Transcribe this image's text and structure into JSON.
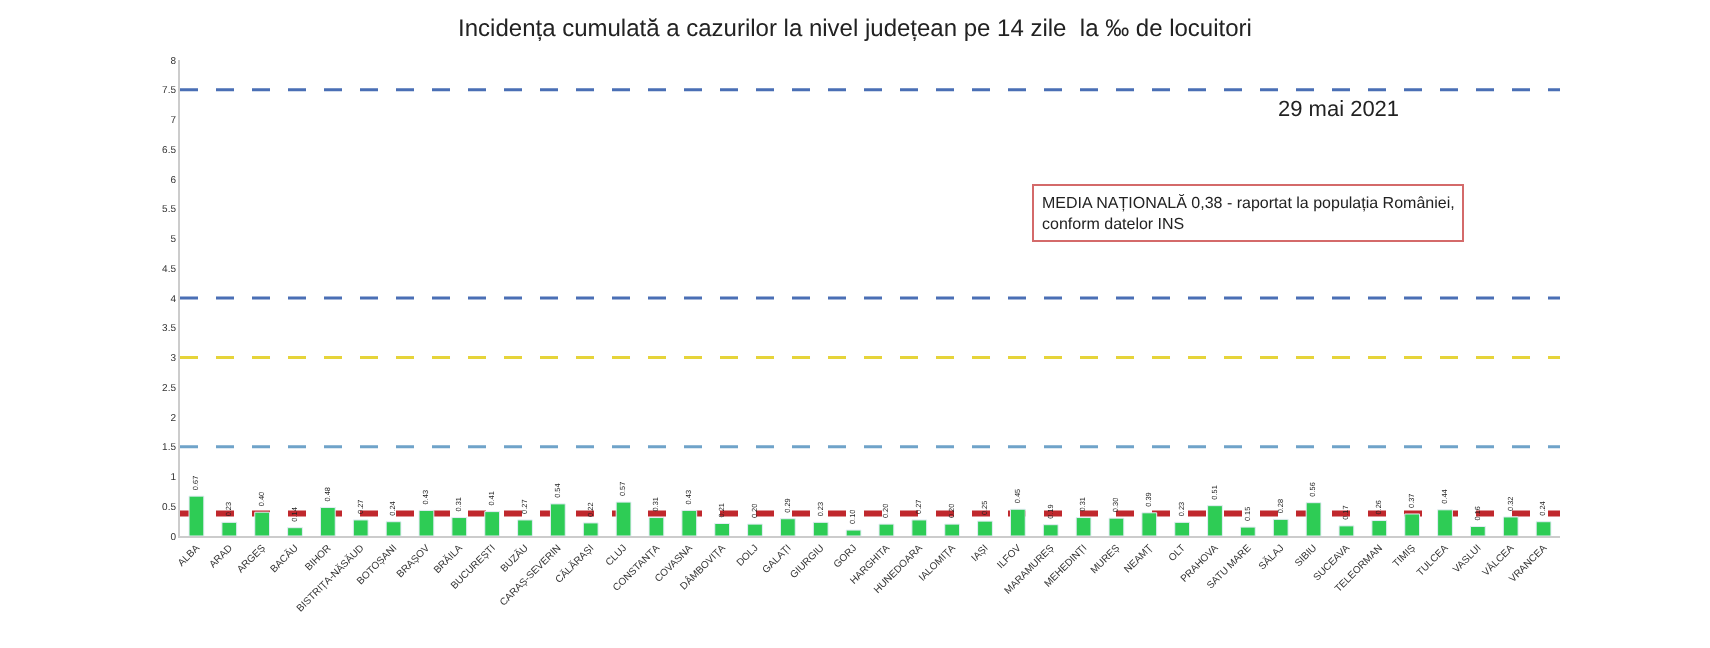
{
  "chart_data": {
    "type": "bar",
    "title": "Incidența cumulată a cazurilor la nivel județean pe 14 zile  la ‰ de locuitori",
    "subtitle": "29 mai 2021",
    "categories": [
      "ALBA",
      "ARAD",
      "ARGEȘ",
      "BACĂU",
      "BIHOR",
      "BISTRIȚA-NĂSĂUD",
      "BOTOȘANI",
      "BRAȘOV",
      "BRĂILA",
      "BUCUREȘTI",
      "BUZĂU",
      "CARAȘ-SEVERIN",
      "CĂLĂRAȘI",
      "CLUJ",
      "CONSTANȚA",
      "COVASNA",
      "DÂMBOVIȚA",
      "DOLJ",
      "GALAȚI",
      "GIURGIU",
      "GORJ",
      "HARGHITA",
      "HUNEDOARA",
      "IALOMIȚA",
      "IAȘI",
      "ILFOV",
      "MARAMUREȘ",
      "MEHEDINȚI",
      "MUREȘ",
      "NEAMȚ",
      "OLT",
      "PRAHOVA",
      "SATU MARE",
      "SĂLAJ",
      "SIBIU",
      "SUCEAVA",
      "TELEORMAN",
      "TIMIȘ",
      "TULCEA",
      "VASLUI",
      "VÂLCEA",
      "VRANCEA"
    ],
    "values": [
      0.67,
      0.23,
      0.4,
      0.14,
      0.48,
      0.27,
      0.24,
      0.43,
      0.31,
      0.41,
      0.27,
      0.54,
      0.22,
      0.57,
      0.31,
      0.43,
      0.21,
      0.2,
      0.29,
      0.23,
      0.1,
      0.2,
      0.27,
      0.2,
      0.25,
      0.45,
      0.19,
      0.31,
      0.3,
      0.39,
      0.23,
      0.51,
      0.15,
      0.28,
      0.56,
      0.17,
      0.26,
      0.37,
      0.44,
      0.16,
      0.32,
      0.24
    ],
    "value_labels": [
      "0.67",
      "0.23",
      "0.40",
      "0.14",
      "0.48",
      "0.27",
      "0.24",
      "0.43",
      "0.31",
      "0.41",
      "0.27",
      "0.54",
      "0.22",
      "0.57",
      "0.31",
      "0.43",
      "0.21",
      "0.20",
      "0.29",
      "0.23",
      "0.10",
      "0.20",
      "0.27",
      "0.20",
      "0.25",
      "0.45",
      "0.19",
      "0.31",
      "0.30",
      "0.39",
      "0.23",
      "0.51",
      "0.15",
      "0.28",
      "0.56",
      "0.17",
      "0.26",
      "0.37",
      "0.44",
      "0.16",
      "0.32",
      "0.24"
    ],
    "color": "#2ecc55",
    "ylim": [
      0,
      8
    ],
    "yticks": [
      0,
      0.5,
      1,
      1.5,
      2,
      2.5,
      3,
      3.5,
      4,
      4.5,
      5,
      5.5,
      6,
      6.5,
      7,
      7.5,
      8
    ],
    "ref_lines": [
      {
        "axis": "y",
        "value": 0.38,
        "label": null,
        "color": "#c0282d",
        "line_style": "dashed"
      },
      {
        "axis": "y",
        "value": 1.5,
        "label": null,
        "color": "#6fa3c9",
        "line_style": "dashed"
      },
      {
        "axis": "y",
        "value": 3,
        "label": null,
        "color": "#e6d43a",
        "line_style": "dashed"
      },
      {
        "axis": "y",
        "value": 4,
        "label": null,
        "color": "#4a6fb5",
        "line_style": "dashed"
      },
      {
        "axis": "y",
        "value": 7.5,
        "label": null,
        "color": "#4a6fb5",
        "line_style": "dashed"
      }
    ],
    "annotations": [
      "MEDIA NAȚIONALĂ 0,38 - raportat la populația României,\nconform datelor INS"
    ],
    "grid": false
  }
}
